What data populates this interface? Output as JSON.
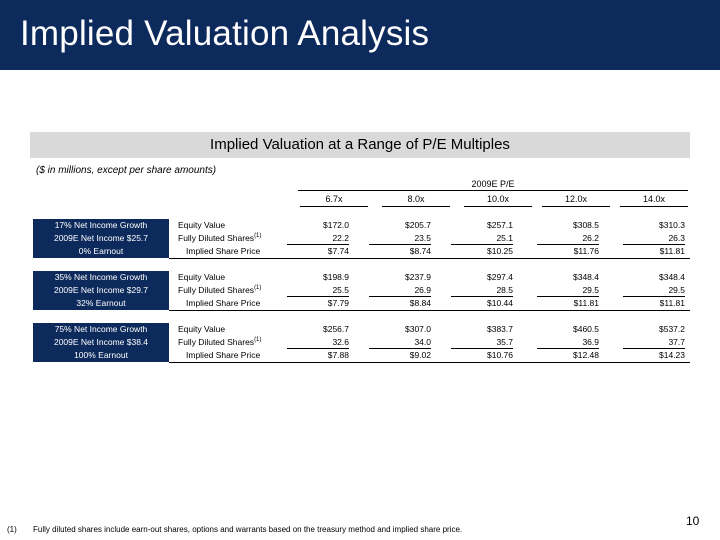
{
  "header": {
    "title": "Implied Valuation Analysis"
  },
  "table": {
    "subtitle": "Implied Valuation at a Range of P/E Multiples",
    "units_note": "($ in millions, except per share amounts)",
    "column_group": "2009E P/E",
    "columns": [
      "6.7x",
      "8.0x",
      "10.0x",
      "12.0x",
      "14.0x"
    ],
    "metric_labels": [
      "Equity Value",
      "Fully Diluted Shares",
      "Implied Share Price"
    ],
    "footnote_marker": "(1)",
    "scenarios": [
      {
        "lines": [
          "17% Net Income Growth",
          "2009E Net Income $25.7",
          "0% Earnout"
        ],
        "equity_value": [
          "$172.0",
          "$205.7",
          "$257.1",
          "$308.5",
          "$310.3"
        ],
        "diluted_shares": [
          "22.2",
          "23.5",
          "25.1",
          "26.2",
          "26.3"
        ],
        "share_price": [
          "$7.74",
          "$8.74",
          "$10.25",
          "$11.76",
          "$11.81"
        ]
      },
      {
        "lines": [
          "35% Net Income Growth",
          "2009E Net Income $29.7",
          "32% Earnout"
        ],
        "equity_value": [
          "$198.9",
          "$237.9",
          "$297.4",
          "$348.4",
          "$348.4"
        ],
        "diluted_shares": [
          "25.5",
          "26.9",
          "28.5",
          "29.5",
          "29.5"
        ],
        "share_price": [
          "$7.79",
          "$8.84",
          "$10.44",
          "$11.81",
          "$11.81"
        ]
      },
      {
        "lines": [
          "75% Net Income Growth",
          "2009E Net Income $38.4",
          "100% Earnout"
        ],
        "equity_value": [
          "$256.7",
          "$307.0",
          "$383.7",
          "$460.5",
          "$537.2"
        ],
        "diluted_shares": [
          "32.6",
          "34.0",
          "35.7",
          "36.9",
          "37.7"
        ],
        "share_price": [
          "$7.88",
          "$9.02",
          "$10.76",
          "$12.48",
          "$14.23"
        ]
      }
    ]
  },
  "footer": {
    "footnote_number": "(1)",
    "footnote_text": "Fully diluted shares include earn-out shares, options and warrants based on the treasury method and implied share price.",
    "page_number": "10"
  }
}
